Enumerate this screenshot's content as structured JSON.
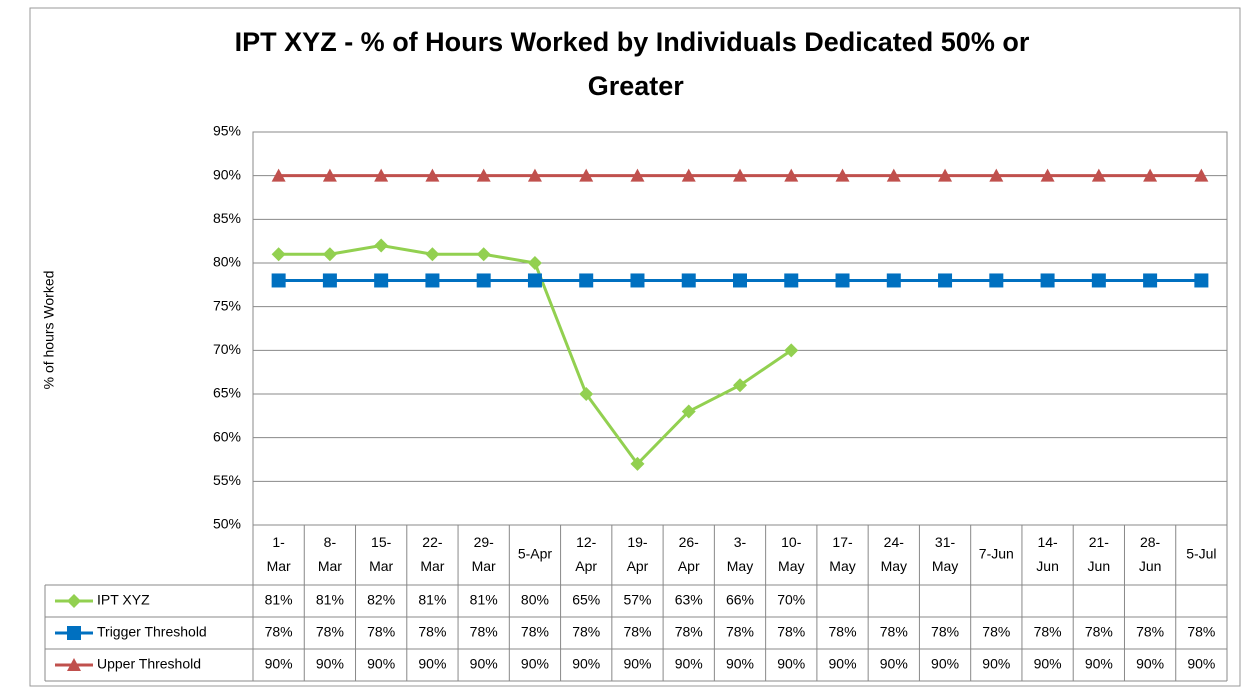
{
  "chart_data": {
    "type": "line",
    "title": "IPT XYZ - % of Hours Worked by Individuals Dedicated 50% or Greater",
    "y_label": "% of hours Worked",
    "categories": [
      "1-Mar",
      "8-Mar",
      "15-Mar",
      "22-Mar",
      "29-Mar",
      "5-Apr",
      "12-Apr",
      "19-Apr",
      "26-Apr",
      "3-May",
      "10-May",
      "17-May",
      "24-May",
      "31-May",
      "7-Jun",
      "14-Jun",
      "21-Jun",
      "28-Jun",
      "5-Jul"
    ],
    "series": [
      {
        "name": "IPT XYZ",
        "color": "#92d050",
        "marker": "diamond",
        "values": [
          81,
          81,
          82,
          81,
          81,
          80,
          65,
          57,
          63,
          66,
          70,
          null,
          null,
          null,
          null,
          null,
          null,
          null,
          null
        ],
        "value_labels": [
          "81%",
          "81%",
          "82%",
          "81%",
          "81%",
          "80%",
          "65%",
          "57%",
          "63%",
          "66%",
          "70%",
          null,
          null,
          null,
          null,
          null,
          null,
          null,
          null
        ]
      },
      {
        "name": "Trigger Threshold",
        "color": "#0070c0",
        "marker": "square",
        "values": [
          78,
          78,
          78,
          78,
          78,
          78,
          78,
          78,
          78,
          78,
          78,
          78,
          78,
          78,
          78,
          78,
          78,
          78,
          78
        ],
        "value_labels": [
          "78%",
          "78%",
          "78%",
          "78%",
          "78%",
          "78%",
          "78%",
          "78%",
          "78%",
          "78%",
          "78%",
          "78%",
          "78%",
          "78%",
          "78%",
          "78%",
          "78%",
          "78%",
          "78%"
        ]
      },
      {
        "name": "Upper Threshold",
        "color": "#c0504d",
        "marker": "triangle",
        "values": [
          90,
          90,
          90,
          90,
          90,
          90,
          90,
          90,
          90,
          90,
          90,
          90,
          90,
          90,
          90,
          90,
          90,
          90,
          90
        ],
        "value_labels": [
          "90%",
          "90%",
          "90%",
          "90%",
          "90%",
          "90%",
          "90%",
          "90%",
          "90%",
          "90%",
          "90%",
          "90%",
          "90%",
          "90%",
          "90%",
          "90%",
          "90%",
          "90%",
          "90%"
        ]
      }
    ],
    "ylim": [
      50,
      95
    ],
    "yticks": [
      {
        "value": 50,
        "label": "50%"
      },
      {
        "value": 55,
        "label": "55%"
      },
      {
        "value": 60,
        "label": "60%"
      },
      {
        "value": 65,
        "label": "65%"
      },
      {
        "value": 70,
        "label": "70%"
      },
      {
        "value": 75,
        "label": "75%"
      },
      {
        "value": 80,
        "label": "80%"
      },
      {
        "value": 85,
        "label": "85%"
      },
      {
        "value": 90,
        "label": "90%"
      },
      {
        "value": 95,
        "label": "95%"
      }
    ],
    "grid": true
  }
}
